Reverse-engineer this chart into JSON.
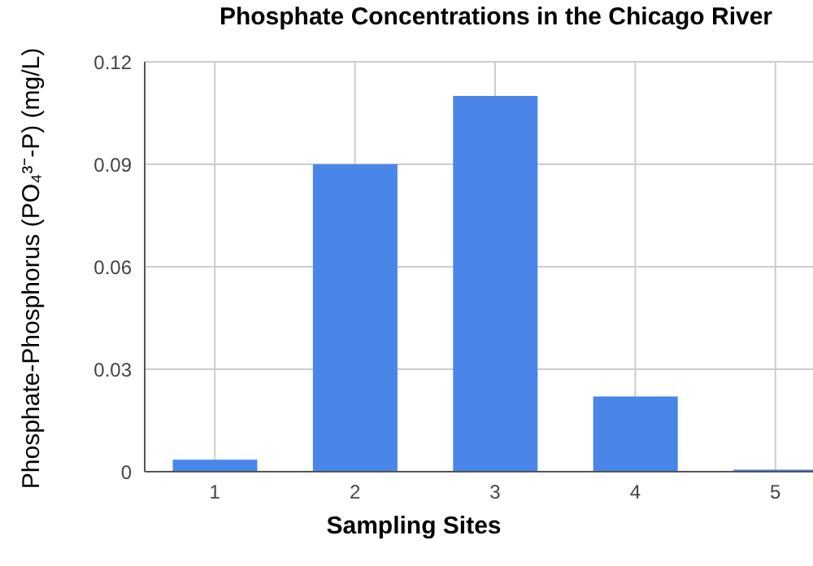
{
  "chart_data": {
    "type": "bar",
    "title": "Phosphate Concentrations in the Chicago River",
    "xlabel": "Sampling Sites",
    "ylabel": "Phosphate-Phosphorus (PO₄³⁻-P) (mg/L)",
    "categories": [
      "1",
      "2",
      "3",
      "4",
      "5"
    ],
    "values": [
      0.0035,
      0.09,
      0.11,
      0.022,
      0.0006
    ],
    "color": "#4a86e8",
    "ylim": [
      0,
      0.12
    ],
    "yticks": [
      0,
      0.03,
      0.06,
      0.09,
      0.12
    ],
    "grid": true
  }
}
